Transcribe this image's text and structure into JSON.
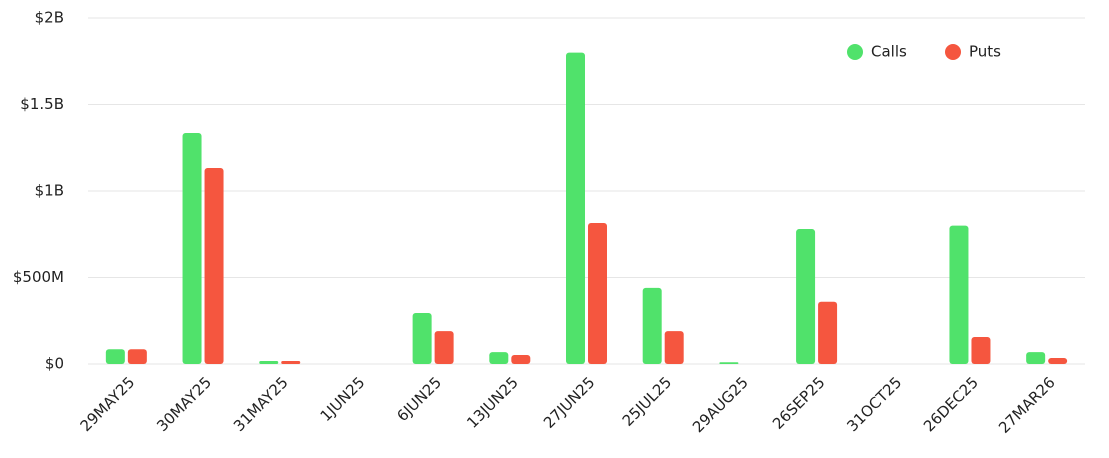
{
  "chart_data": {
    "type": "bar",
    "categories": [
      "29MAY25",
      "30MAY25",
      "31MAY25",
      "1JUN25",
      "6JUN25",
      "13JUN25",
      "27JUN25",
      "25JUL25",
      "29AUG25",
      "26SEP25",
      "31OCT25",
      "26DEC25",
      "27MAR26"
    ],
    "series": [
      {
        "name": "Calls",
        "color": "#50e26b",
        "values": [
          85000000,
          1335000000,
          17000000,
          0,
          295000000,
          69000000,
          1800000000,
          440000000,
          10000000,
          780000000,
          0,
          800000000,
          69000000
        ]
      },
      {
        "name": "Puts",
        "color": "#f5563f",
        "values": [
          85000000,
          1133000000,
          17000000,
          0,
          190000000,
          52000000,
          815000000,
          190000000,
          0,
          360000000,
          0,
          156000000,
          35000000
        ]
      }
    ],
    "ylim": [
      0,
      2000000000
    ],
    "yticks": [
      {
        "value": 0,
        "label": "$0"
      },
      {
        "value": 500000000,
        "label": "$500M"
      },
      {
        "value": 1000000000,
        "label": "$1B"
      },
      {
        "value": 1500000000,
        "label": "$1.5B"
      },
      {
        "value": 2000000000,
        "label": "$2B"
      }
    ],
    "grid": true,
    "legend": "top-right"
  }
}
